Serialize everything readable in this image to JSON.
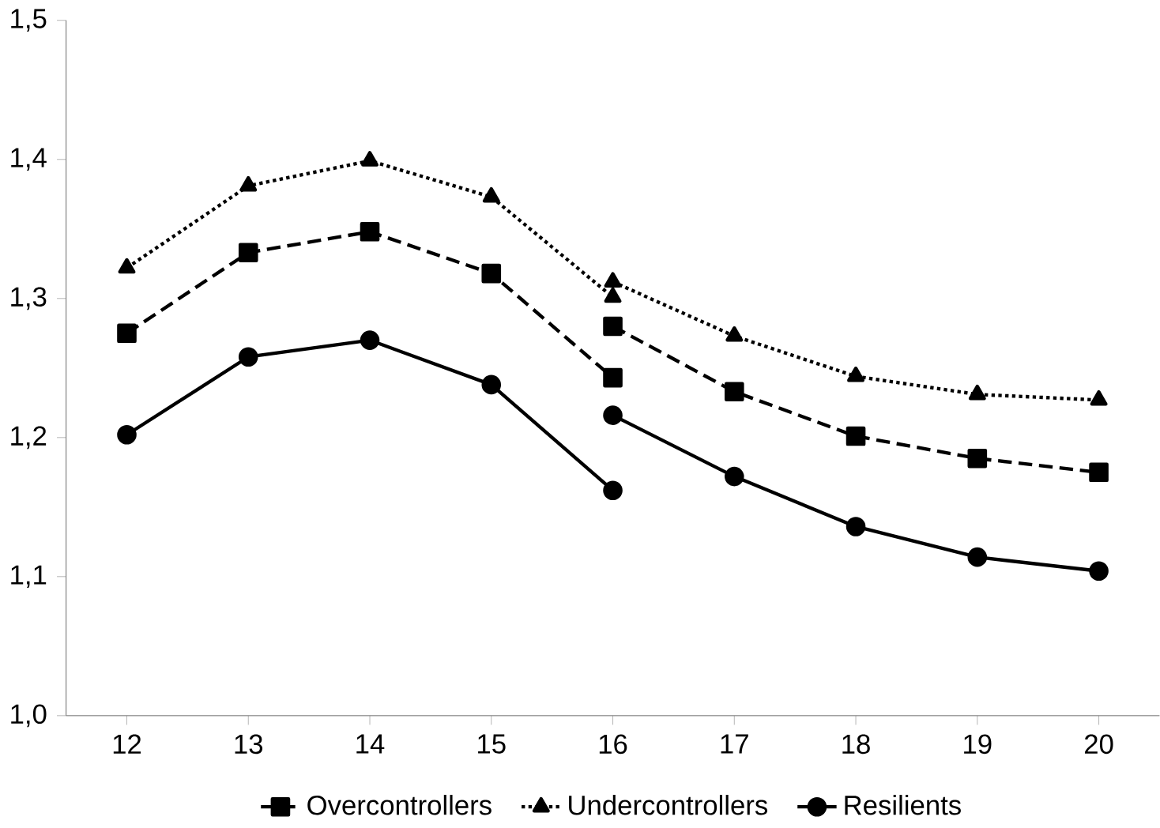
{
  "chart_data": {
    "type": "line",
    "series": [
      {
        "name": "Overcontrollers",
        "color": "#000000",
        "marker": "square",
        "line_style": "dashed",
        "x": [
          12,
          13,
          14,
          15,
          16
        ],
        "values": [
          1.275,
          1.333,
          1.348,
          1.318,
          1.243
        ]
      },
      {
        "name": "Undercontrollers",
        "color": "#000000",
        "marker": "triangle",
        "line_style": "dotted",
        "x": [
          12,
          13,
          14,
          15,
          16
        ],
        "values": [
          1.322,
          1.381,
          1.399,
          1.373,
          1.301
        ]
      },
      {
        "name": "Resilients",
        "color": "#000000",
        "marker": "circle",
        "line_style": "solid",
        "x": [
          12,
          13,
          14,
          15,
          16
        ],
        "values": [
          1.202,
          1.258,
          1.27,
          1.238,
          1.162
        ]
      },
      {
        "color": "#000000",
        "marker": "square",
        "line_style": "dashed",
        "x": [
          16,
          17,
          18,
          19,
          20
        ],
        "values": [
          1.28,
          1.233,
          1.201,
          1.185,
          1.175
        ]
      },
      {
        "color": "#000000",
        "marker": "triangle",
        "line_style": "dotted",
        "x": [
          16,
          17,
          18,
          19,
          20
        ],
        "values": [
          1.312,
          1.273,
          1.244,
          1.231,
          1.227
        ]
      },
      {
        "color": "#000000",
        "marker": "circle",
        "line_style": "solid",
        "x": [
          16,
          17,
          18,
          19,
          20
        ],
        "values": [
          1.216,
          1.172,
          1.136,
          1.114,
          1.104
        ]
      }
    ],
    "xlim": [
      11.5,
      20.5
    ],
    "xticks": [
      12,
      13,
      14,
      15,
      16,
      17,
      18,
      19,
      20
    ],
    "ylim": [
      1.0,
      1.5
    ],
    "yticks": [
      {
        "value": 1.0,
        "label": "1,0"
      },
      {
        "value": 1.1,
        "label": "1,1"
      },
      {
        "value": 1.2,
        "label": "1,2"
      },
      {
        "value": 1.3,
        "label": "1,3"
      },
      {
        "value": 1.4,
        "label": "1,4"
      },
      {
        "value": 1.5,
        "label": "1,5"
      }
    ],
    "grid": false,
    "legend": "bottom"
  }
}
